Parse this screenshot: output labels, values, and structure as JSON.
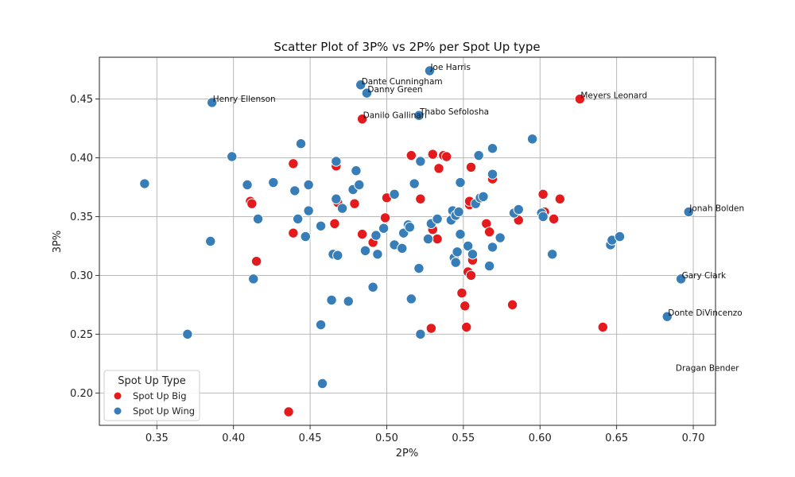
{
  "chart_data": {
    "type": "scatter",
    "title": "Scatter Plot of 3P% vs 2P% per Spot Up type",
    "xlabel": "2P%",
    "ylabel": "3P%",
    "xlim": [
      0.3125,
      0.7145
    ],
    "ylim": [
      0.1725,
      0.4855
    ],
    "xticks": [
      "0.35",
      "0.40",
      "0.45",
      "0.50",
      "0.55",
      "0.60",
      "0.65",
      "0.70"
    ],
    "yticks": [
      "0.20",
      "0.25",
      "0.30",
      "0.35",
      "0.40",
      "0.45"
    ],
    "grid": true,
    "legend": {
      "title": "Spot Up Type",
      "placement": "lower-left"
    },
    "series": [
      {
        "name": "Spot Up Big",
        "color": "#e41a1c",
        "points": [
          [
            0.436,
            0.184
          ],
          [
            0.411,
            0.363
          ],
          [
            0.412,
            0.361
          ],
          [
            0.415,
            0.312
          ],
          [
            0.439,
            0.395
          ],
          [
            0.439,
            0.336
          ],
          [
            0.466,
            0.344
          ],
          [
            0.467,
            0.393
          ],
          [
            0.468,
            0.362
          ],
          [
            0.479,
            0.361
          ],
          [
            0.484,
            0.433
          ],
          [
            0.484,
            0.335
          ],
          [
            0.491,
            0.328
          ],
          [
            0.499,
            0.349
          ],
          [
            0.5,
            0.366
          ],
          [
            0.516,
            0.402
          ],
          [
            0.522,
            0.365
          ],
          [
            0.529,
            0.255
          ],
          [
            0.53,
            0.339
          ],
          [
            0.53,
            0.403
          ],
          [
            0.533,
            0.331
          ],
          [
            0.534,
            0.391
          ],
          [
            0.537,
            0.402
          ],
          [
            0.539,
            0.401
          ],
          [
            0.549,
            0.285
          ],
          [
            0.551,
            0.274
          ],
          [
            0.552,
            0.256
          ],
          [
            0.553,
            0.303
          ],
          [
            0.554,
            0.36
          ],
          [
            0.554,
            0.363
          ],
          [
            0.555,
            0.392
          ],
          [
            0.555,
            0.3
          ],
          [
            0.556,
            0.313
          ],
          [
            0.565,
            0.344
          ],
          [
            0.567,
            0.337
          ],
          [
            0.569,
            0.382
          ],
          [
            0.582,
            0.275
          ],
          [
            0.586,
            0.347
          ],
          [
            0.602,
            0.369
          ],
          [
            0.603,
            0.354
          ],
          [
            0.609,
            0.348
          ],
          [
            0.613,
            0.365
          ],
          [
            0.626,
            0.45
          ],
          [
            0.641,
            0.256
          ]
        ]
      },
      {
        "name": "Spot Up Wing",
        "color": "#377eb8",
        "points": [
          [
            0.342,
            0.378
          ],
          [
            0.37,
            0.25
          ],
          [
            0.385,
            0.329
          ],
          [
            0.386,
            0.447
          ],
          [
            0.399,
            0.401
          ],
          [
            0.409,
            0.377
          ],
          [
            0.413,
            0.297
          ],
          [
            0.416,
            0.348
          ],
          [
            0.426,
            0.379
          ],
          [
            0.44,
            0.372
          ],
          [
            0.442,
            0.348
          ],
          [
            0.444,
            0.412
          ],
          [
            0.447,
            0.333
          ],
          [
            0.449,
            0.377
          ],
          [
            0.449,
            0.355
          ],
          [
            0.457,
            0.342
          ],
          [
            0.457,
            0.258
          ],
          [
            0.458,
            0.208
          ],
          [
            0.464,
            0.279
          ],
          [
            0.465,
            0.318
          ],
          [
            0.467,
            0.397
          ],
          [
            0.467,
            0.365
          ],
          [
            0.468,
            0.317
          ],
          [
            0.471,
            0.357
          ],
          [
            0.475,
            0.278
          ],
          [
            0.478,
            0.373
          ],
          [
            0.48,
            0.389
          ],
          [
            0.482,
            0.377
          ],
          [
            0.483,
            0.462
          ],
          [
            0.486,
            0.321
          ],
          [
            0.487,
            0.455
          ],
          [
            0.491,
            0.29
          ],
          [
            0.493,
            0.334
          ],
          [
            0.494,
            0.318
          ],
          [
            0.498,
            0.34
          ],
          [
            0.505,
            0.369
          ],
          [
            0.505,
            0.326
          ],
          [
            0.51,
            0.323
          ],
          [
            0.511,
            0.336
          ],
          [
            0.514,
            0.343
          ],
          [
            0.515,
            0.341
          ],
          [
            0.516,
            0.28
          ],
          [
            0.518,
            0.378
          ],
          [
            0.521,
            0.436
          ],
          [
            0.521,
            0.306
          ],
          [
            0.522,
            0.25
          ],
          [
            0.522,
            0.397
          ],
          [
            0.527,
            0.331
          ],
          [
            0.528,
            0.474
          ],
          [
            0.529,
            0.344
          ],
          [
            0.533,
            0.348
          ],
          [
            0.542,
            0.347
          ],
          [
            0.543,
            0.355
          ],
          [
            0.544,
            0.315
          ],
          [
            0.545,
            0.311
          ],
          [
            0.545,
            0.351
          ],
          [
            0.546,
            0.32
          ],
          [
            0.547,
            0.354
          ],
          [
            0.548,
            0.335
          ],
          [
            0.548,
            0.379
          ],
          [
            0.553,
            0.325
          ],
          [
            0.556,
            0.318
          ],
          [
            0.558,
            0.361
          ],
          [
            0.56,
            0.402
          ],
          [
            0.561,
            0.366
          ],
          [
            0.563,
            0.367
          ],
          [
            0.567,
            0.308
          ],
          [
            0.569,
            0.408
          ],
          [
            0.569,
            0.386
          ],
          [
            0.569,
            0.324
          ],
          [
            0.574,
            0.332
          ],
          [
            0.583,
            0.353
          ],
          [
            0.586,
            0.356
          ],
          [
            0.595,
            0.416
          ],
          [
            0.601,
            0.353
          ],
          [
            0.602,
            0.35
          ],
          [
            0.608,
            0.318
          ],
          [
            0.646,
            0.326
          ],
          [
            0.647,
            0.33
          ],
          [
            0.652,
            0.333
          ],
          [
            0.683,
            0.265
          ],
          [
            0.692,
            0.297
          ],
          [
            0.697,
            0.354
          ]
        ]
      }
    ],
    "annotations": [
      {
        "text": "Joe Harris",
        "x": 0.528,
        "y": 0.474
      },
      {
        "text": "Dante Cunningham",
        "x": 0.483,
        "y": 0.462
      },
      {
        "text": "Danny Green",
        "x": 0.487,
        "y": 0.455
      },
      {
        "text": "Henry Ellenson",
        "x": 0.386,
        "y": 0.447
      },
      {
        "text": "Meyers Leonard",
        "x": 0.626,
        "y": 0.45
      },
      {
        "text": "Thabo Sefolosha",
        "x": 0.521,
        "y": 0.436
      },
      {
        "text": "Danilo Gallinari",
        "x": 0.484,
        "y": 0.433
      },
      {
        "text": "Jonah Bolden",
        "x": 0.697,
        "y": 0.354
      },
      {
        "text": "Gary Clark",
        "x": 0.692,
        "y": 0.297
      },
      {
        "text": "Donte DiVincenzo",
        "x": 0.683,
        "y": 0.265
      },
      {
        "text": "Dragan Bender",
        "x": 0.688,
        "y": 0.218
      }
    ]
  }
}
